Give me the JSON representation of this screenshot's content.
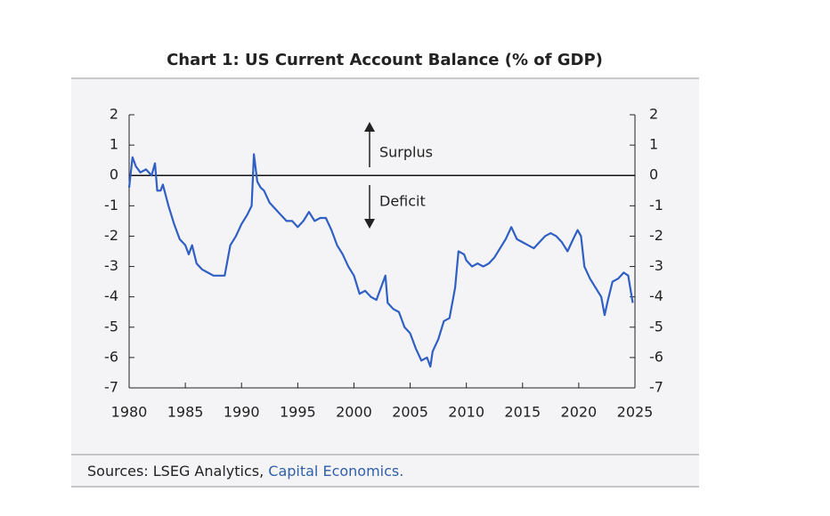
{
  "chart_data": {
    "type": "line",
    "title": "Chart 1: US Current Account Balance (% of GDP)",
    "annotations": [
      "Surplus",
      "Deficit"
    ],
    "sources": [
      "Sources: LSEG Analytics, ",
      "Capital Economics."
    ],
    "xlim": [
      1980,
      2025
    ],
    "xticks": [
      1980,
      1985,
      1990,
      1995,
      2000,
      2005,
      2010,
      2015,
      2020,
      2025
    ],
    "ylim": [
      -7,
      2
    ],
    "yticks": [
      -7,
      -6,
      -5,
      -4,
      -3,
      -2,
      -1,
      0,
      1,
      2
    ],
    "y2lim": [
      -7,
      2
    ],
    "y2ticks": [
      -7,
      -6,
      -5,
      -4,
      -3,
      -2,
      -1,
      0,
      1,
      2
    ],
    "series": [
      {
        "color": "#2f5fc4",
        "x": [
          1980.0,
          1980.3,
          1980.6,
          1981.0,
          1981.5,
          1982.0,
          1982.3,
          1982.5,
          1982.8,
          1983.0,
          1983.5,
          1984.0,
          1984.5,
          1985.0,
          1985.3,
          1985.6,
          1986.0,
          1986.5,
          1987.0,
          1987.5,
          1988.0,
          1988.5,
          1989.0,
          1989.5,
          1990.0,
          1990.5,
          1990.9,
          1991.1,
          1991.4,
          1991.7,
          1992.0,
          1992.5,
          1993.0,
          1993.5,
          1994.0,
          1994.5,
          1995.0,
          1995.5,
          1996.0,
          1996.5,
          1997.0,
          1997.5,
          1998.0,
          1998.5,
          1999.0,
          1999.5,
          2000.0,
          2000.5,
          2001.0,
          2001.5,
          2002.0,
          2002.5,
          2002.8,
          2003.0,
          2003.5,
          2004.0,
          2004.5,
          2005.0,
          2005.5,
          2006.0,
          2006.5,
          2006.8,
          2007.0,
          2007.5,
          2008.0,
          2008.5,
          2009.0,
          2009.3,
          2009.8,
          2010.0,
          2010.5,
          2011.0,
          2011.5,
          2012.0,
          2012.5,
          2013.0,
          2013.5,
          2014.0,
          2014.5,
          2015.0,
          2015.5,
          2016.0,
          2016.5,
          2017.0,
          2017.5,
          2018.0,
          2018.5,
          2019.0,
          2019.5,
          2019.9,
          2020.2,
          2020.5,
          2021.0,
          2021.5,
          2022.0,
          2022.3,
          2022.6,
          2023.0,
          2023.5,
          2024.0,
          2024.4,
          2024.8
        ],
        "values": [
          -0.4,
          0.6,
          0.3,
          0.1,
          0.2,
          0.0,
          0.4,
          -0.5,
          -0.5,
          -0.3,
          -1.0,
          -1.6,
          -2.1,
          -2.3,
          -2.6,
          -2.3,
          -2.9,
          -3.1,
          -3.2,
          -3.3,
          -3.3,
          -3.3,
          -2.3,
          -2.0,
          -1.6,
          -1.3,
          -1.0,
          0.7,
          -0.2,
          -0.4,
          -0.5,
          -0.9,
          -1.1,
          -1.3,
          -1.5,
          -1.5,
          -1.7,
          -1.5,
          -1.2,
          -1.5,
          -1.4,
          -1.4,
          -1.8,
          -2.3,
          -2.6,
          -3.0,
          -3.3,
          -3.9,
          -3.8,
          -4.0,
          -4.1,
          -3.6,
          -3.3,
          -4.2,
          -4.4,
          -4.5,
          -5.0,
          -5.2,
          -5.7,
          -6.1,
          -6.0,
          -6.3,
          -5.8,
          -5.4,
          -4.8,
          -4.7,
          -3.7,
          -2.5,
          -2.6,
          -2.8,
          -3.0,
          -2.9,
          -3.0,
          -2.9,
          -2.7,
          -2.4,
          -2.1,
          -1.7,
          -2.1,
          -2.2,
          -2.3,
          -2.4,
          -2.2,
          -2.0,
          -1.9,
          -2.0,
          -2.2,
          -2.5,
          -2.1,
          -1.8,
          -2.0,
          -3.0,
          -3.4,
          -3.7,
          -4.0,
          -4.6,
          -4.1,
          -3.5,
          -3.4,
          -3.2,
          -3.3,
          -4.2
        ]
      }
    ]
  }
}
